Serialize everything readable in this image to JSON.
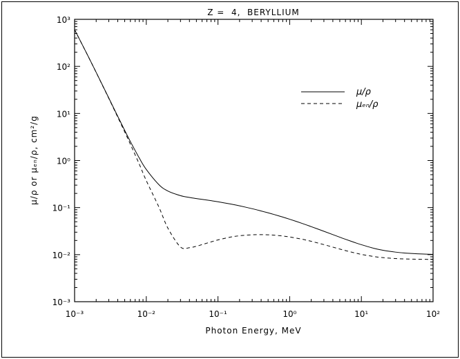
{
  "chart_data": {
    "type": "line",
    "title": "Z =  4,  BERYLLIUM",
    "xlabel": "Photon Energy, MeV",
    "ylabel": "μ/ρ or μₑₙ/ρ, cm²/g",
    "xscale": "log",
    "yscale": "log",
    "xlim": [
      0.001,
      100
    ],
    "ylim": [
      0.001,
      1000
    ],
    "grid": false,
    "legend_position": "top-right",
    "x_tick_labels": [
      "10⁻³",
      "10⁻²",
      "10⁻¹",
      "10⁰",
      "10¹",
      "10²"
    ],
    "y_tick_labels": [
      "10⁻³",
      "10⁻²",
      "10⁻¹",
      "10⁰",
      "10¹",
      "10²",
      "10³"
    ],
    "x": [
      0.001,
      0.0015,
      0.002,
      0.003,
      0.004,
      0.005,
      0.006,
      0.008,
      0.01,
      0.015,
      0.02,
      0.03,
      0.04,
      0.05,
      0.06,
      0.08,
      0.1,
      0.15,
      0.2,
      0.3,
      0.4,
      0.5,
      0.6,
      0.8,
      1,
      1.5,
      2,
      3,
      4,
      5,
      6,
      8,
      10,
      15,
      20,
      30,
      40,
      50,
      60,
      80,
      100
    ],
    "series": [
      {
        "name": "μ/ρ",
        "style": "solid",
        "values": [
          604,
          179.7,
          74.69,
          21.27,
          8.685,
          4.369,
          2.527,
          1.124,
          0.6466,
          0.307,
          0.2251,
          0.1792,
          0.164,
          0.1554,
          0.1493,
          0.1401,
          0.1328,
          0.119,
          0.1089,
          0.09463,
          0.08471,
          0.07739,
          0.07155,
          0.06286,
          0.05653,
          0.04598,
          0.03932,
          0.03138,
          0.02664,
          0.02347,
          0.02121,
          0.01819,
          0.01627,
          0.01361,
          0.0124,
          0.01131,
          0.01082,
          0.01058,
          0.01042,
          0.01024,
          0.01016
        ]
      },
      {
        "name": "μₑₙ/ρ",
        "style": "dashed",
        "values": [
          603.5,
          179.1,
          74.22,
          20.9,
          8.339,
          4.05,
          2.219,
          0.8309,
          0.3739,
          0.1024,
          0.03667,
          0.01452,
          0.01406,
          0.01507,
          0.01633,
          0.01866,
          0.02055,
          0.02363,
          0.02522,
          0.0264,
          0.02658,
          0.02639,
          0.02597,
          0.02487,
          0.02372,
          0.02121,
          0.01919,
          0.01633,
          0.01445,
          0.01314,
          0.01219,
          0.01092,
          0.01013,
          0.009104,
          0.008634,
          0.008244,
          0.008098,
          0.008023,
          0.007982,
          0.007939,
          0.007919
        ]
      }
    ]
  }
}
